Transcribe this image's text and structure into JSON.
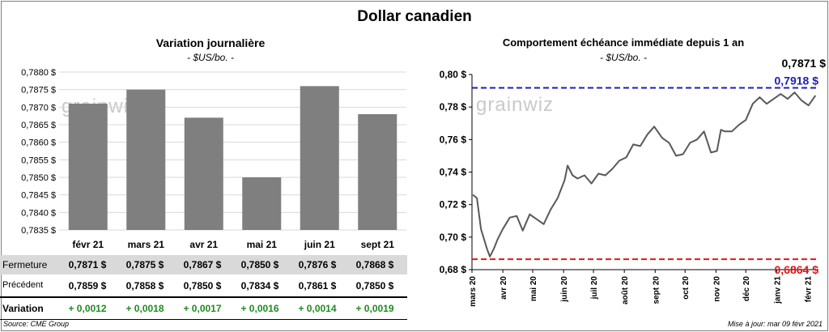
{
  "title": "Dollar canadien",
  "left_chart": {
    "title": "Variation  journalière",
    "subtitle": "- $US/bo. -"
  },
  "right_chart": {
    "title": "Comportement échéance immédiate depuis 1 an",
    "subtitle": "- $US/bo. -"
  },
  "watermark": "grainwiz",
  "chart_data": [
    {
      "type": "bar",
      "title": "Variation  journalière",
      "subtitle": "- $US/bo. -",
      "categories": [
        "févr 21",
        "mars 21",
        "avr 21",
        "mai 21",
        "juin 21",
        "sept 21"
      ],
      "values": [
        0.7871,
        0.7875,
        0.7867,
        0.785,
        0.7876,
        0.7868
      ],
      "ylim": [
        0.7835,
        0.788
      ],
      "yticks": [
        "0,7835 $",
        "0,7840 $",
        "0,7845 $",
        "0,7850 $",
        "0,7855 $",
        "0,7860 $",
        "0,7865 $",
        "0,7870 $",
        "0,7875 $",
        "0,7880 $"
      ],
      "color": "#7f7f7f",
      "grid": true
    },
    {
      "type": "line",
      "title": "Comportement échéance immédiate depuis 1 an",
      "subtitle": "- $US/bo. -",
      "ylim": [
        0.68,
        0.8
      ],
      "yticks": [
        "0,68 $",
        "0,70 $",
        "0,72 $",
        "0,74 $",
        "0,76 $",
        "0,78 $",
        "0,80 $"
      ],
      "xticks": [
        "mars 20",
        "avr 20",
        "mai 20",
        "juin 20",
        "juil 20",
        "août 20",
        "sept 20",
        "oct 20",
        "nov 20",
        "déc 20",
        "janv 21",
        "févr 21"
      ],
      "x": [
        "2020-03-02",
        "2020-03-06",
        "2020-03-10",
        "2020-03-16",
        "2020-03-19",
        "2020-03-23",
        "2020-03-27",
        "2020-04-01",
        "2020-04-08",
        "2020-04-15",
        "2020-04-21",
        "2020-04-28",
        "2020-05-05",
        "2020-05-12",
        "2020-05-19",
        "2020-05-26",
        "2020-06-02",
        "2020-06-05",
        "2020-06-10",
        "2020-06-15",
        "2020-06-22",
        "2020-06-29",
        "2020-07-06",
        "2020-07-13",
        "2020-07-20",
        "2020-07-27",
        "2020-08-03",
        "2020-08-10",
        "2020-08-17",
        "2020-08-24",
        "2020-08-31",
        "2020-09-08",
        "2020-09-15",
        "2020-09-22",
        "2020-09-29",
        "2020-10-06",
        "2020-10-13",
        "2020-10-20",
        "2020-10-27",
        "2020-11-02",
        "2020-11-06",
        "2020-11-10",
        "2020-11-17",
        "2020-11-24",
        "2020-12-01",
        "2020-12-08",
        "2020-12-15",
        "2020-12-22",
        "2020-12-29",
        "2021-01-05",
        "2021-01-12",
        "2021-01-19",
        "2021-01-26",
        "2021-02-02",
        "2021-02-09"
      ],
      "series": [
        {
          "color": "#595959",
          "values": [
            0.726,
            0.724,
            0.705,
            0.693,
            0.688,
            0.693,
            0.699,
            0.705,
            0.712,
            0.713,
            0.704,
            0.714,
            0.711,
            0.708,
            0.717,
            0.724,
            0.735,
            0.744,
            0.738,
            0.736,
            0.738,
            0.733,
            0.739,
            0.738,
            0.742,
            0.747,
            0.749,
            0.757,
            0.756,
            0.763,
            0.768,
            0.761,
            0.758,
            0.75,
            0.751,
            0.758,
            0.76,
            0.765,
            0.752,
            0.753,
            0.766,
            0.765,
            0.765,
            0.769,
            0.772,
            0.782,
            0.786,
            0.782,
            0.785,
            0.788,
            0.785,
            0.789,
            0.784,
            0.781,
            0.7871
          ]
        }
      ],
      "reference_lines": [
        {
          "value": 0.7918,
          "label": "0,7918 $",
          "color": "#1f1fb0"
        },
        {
          "value": 0.6864,
          "label": "0,6864 $",
          "color": "#e01818"
        }
      ],
      "last_label": "0,7871 $",
      "grid": false
    }
  ],
  "table": {
    "rows": [
      {
        "label": "Fermeture",
        "values": [
          "0,7871  $",
          "0,7875  $",
          "0,7867  $",
          "0,7850  $",
          "0,7876  $",
          "0,7868  $"
        ]
      },
      {
        "label": "Précédent",
        "values": [
          "0,7859  $",
          "0,7858  $",
          "0,7850  $",
          "0,7834  $",
          "0,7861  $",
          "0,7850  $"
        ]
      },
      {
        "label": "Variation",
        "values": [
          "+ 0,0012",
          "+ 0,0018",
          "+ 0,0017",
          "+ 0,0016",
          "+ 0,0014",
          "+ 0,0019"
        ]
      }
    ]
  },
  "footer": {
    "source": "Source: CME Group",
    "updated": "Mise à jour: mar 09 févr 2021"
  }
}
